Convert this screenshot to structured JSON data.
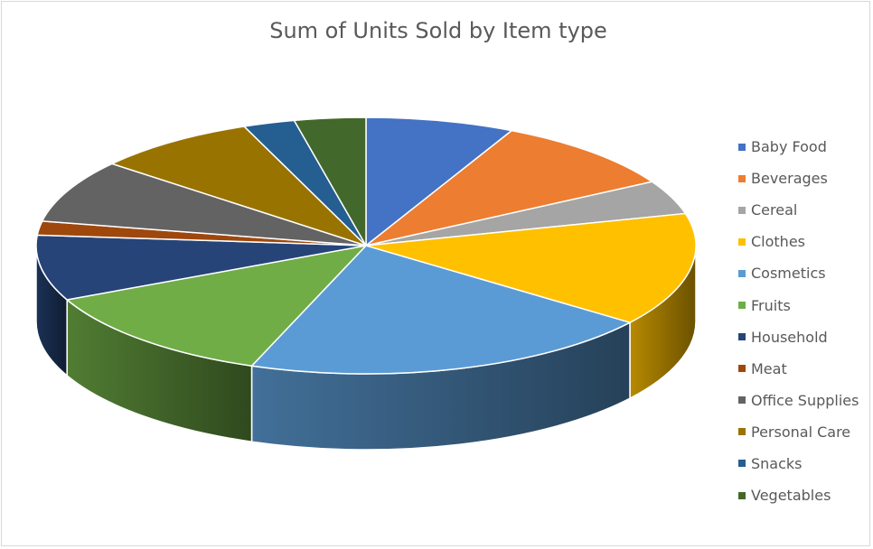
{
  "chart_data": {
    "type": "pie",
    "title": "Sum of Units Sold by Item type",
    "legend_position": "right",
    "categories": [
      "Baby Food",
      "Beverages",
      "Cereal",
      "Clothes",
      "Cosmetics",
      "Fruits",
      "Household",
      "Meat",
      "Office Supplies",
      "Personal Care",
      "Snacks",
      "Vegetables"
    ],
    "values": [
      7.5,
      9.7,
      4.4,
      14.7,
      21.0,
      12.8,
      8.5,
      1.8,
      8.2,
      8.2,
      2.6,
      3.6
    ],
    "value_unit": "approx. percent of total",
    "colors": [
      "#4472C4",
      "#ED7D31",
      "#A5A5A5",
      "#FFC000",
      "#5B9BD5",
      "#70AD47",
      "#264478",
      "#9E480E",
      "#636363",
      "#997300",
      "#255E91",
      "#43682B"
    ]
  }
}
